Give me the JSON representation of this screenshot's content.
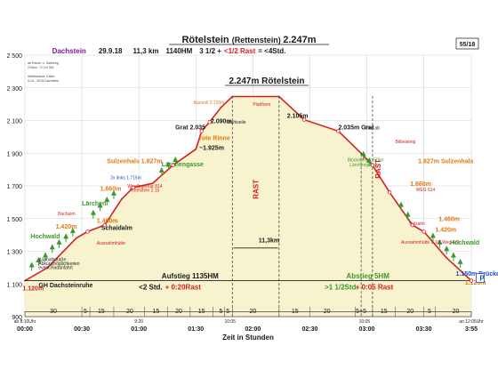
{
  "header": {
    "title_main": "Rötelstein",
    "title_paren": "(Rettenstein)",
    "title_height": "2.247m",
    "region": "Dachstein",
    "date": "29.9.18",
    "distance": "11,3 km",
    "elevation_gain": "1140HM",
    "time_part1": "3 1/2 +",
    "time_rest": "<1/2 Rast",
    "time_total": "= <4Std.",
    "tour_number": "55/18",
    "note_lines": [
      "ab Ramb. u. Salzburg",
      "210km, +2 1/4 Std.",
      "",
      "Waldstrasse 3,8km",
      "4:14 - 2015 Dachstein"
    ]
  },
  "summit_label": "2.247m Rötelstein",
  "colors": {
    "profile": "#d62020",
    "fill": "#f7f3cf",
    "green": "#3a9a2a",
    "blue": "#1a4fc7",
    "orange": "#e07a10",
    "purple": "#7a1c8c"
  },
  "chart_data": {
    "type": "area",
    "xlabel": "Zeit in Stunden",
    "ylabel": "",
    "xlim": [
      0,
      3.9167
    ],
    "ylim": [
      900,
      2500
    ],
    "y_ticks": [
      900,
      1100,
      1300,
      1500,
      1700,
      1900,
      2100,
      2300,
      2500
    ],
    "x_ticks": [
      {
        "t": 0,
        "label": "00:00"
      },
      {
        "t": 0.5,
        "label": "00:30"
      },
      {
        "t": 1.0,
        "label": "01:00"
      },
      {
        "t": 1.5,
        "label": "01:30"
      },
      {
        "t": 2.0,
        "label": "02:00"
      },
      {
        "t": 2.5,
        "label": "02:30"
      },
      {
        "t": 3.0,
        "label": "03:00"
      },
      {
        "t": 3.5,
        "label": "03:30"
      },
      {
        "t": 3.9167,
        "label": "3:55"
      }
    ],
    "x_small_labels": [
      {
        "t": 0.0,
        "label": "ab 8:10Uhr"
      },
      {
        "t": 1.0,
        "label": "9:20"
      },
      {
        "t": 1.8,
        "label": "10:05"
      },
      {
        "t": 2.98,
        "label": "10:05"
      },
      {
        "t": 3.9167,
        "label": "an 12:05Uhr"
      }
    ],
    "profile": [
      {
        "t": 0.0,
        "elev": 1120
      },
      {
        "t": 0.2,
        "elev": 1200
      },
      {
        "t": 0.45,
        "elev": 1380
      },
      {
        "t": 0.55,
        "elev": 1420
      },
      {
        "t": 0.7,
        "elev": 1460
      },
      {
        "t": 0.85,
        "elev": 1620
      },
      {
        "t": 0.95,
        "elev": 1690
      },
      {
        "t": 1.12,
        "elev": 1715
      },
      {
        "t": 1.3,
        "elev": 1827
      },
      {
        "t": 1.5,
        "elev": 1925
      },
      {
        "t": 1.55,
        "elev": 2035
      },
      {
        "t": 1.62,
        "elev": 2090
      },
      {
        "t": 1.72,
        "elev": 2180
      },
      {
        "t": 1.82,
        "elev": 2247
      },
      {
        "t": 2.23,
        "elev": 2247
      },
      {
        "t": 2.45,
        "elev": 2105
      },
      {
        "t": 2.75,
        "elev": 2035
      },
      {
        "t": 2.95,
        "elev": 1900
      },
      {
        "t": 3.05,
        "elev": 1827
      },
      {
        "t": 3.2,
        "elev": 1660
      },
      {
        "t": 3.4,
        "elev": 1460
      },
      {
        "t": 3.5,
        "elev": 1420
      },
      {
        "t": 3.7,
        "elev": 1260
      },
      {
        "t": 3.9167,
        "elev": 1120
      }
    ],
    "segment_labels": [
      {
        "t": 0.25,
        "label": "30"
      },
      {
        "t": 0.53,
        "label": "5"
      },
      {
        "t": 0.67,
        "label": "15"
      },
      {
        "t": 0.92,
        "label": "20"
      },
      {
        "t": 1.15,
        "label": "15"
      },
      {
        "t": 1.35,
        "label": "20"
      },
      {
        "t": 1.55,
        "label": "15"
      },
      {
        "t": 1.72,
        "label": "5"
      },
      {
        "t": 1.78,
        "label": "5"
      },
      {
        "t": 2.0,
        "label": "20"
      },
      {
        "t": 2.37,
        "label": "15"
      },
      {
        "t": 2.65,
        "label": "20"
      },
      {
        "t": 2.95,
        "label": "5+5"
      },
      {
        "t": 3.15,
        "label": "15"
      },
      {
        "t": 3.38,
        "label": "20"
      },
      {
        "t": 3.55,
        "label": "5"
      },
      {
        "t": 3.78,
        "label": "20"
      }
    ],
    "annotations_ascent": [
      {
        "text": "1.120m",
        "t": -0.02,
        "elev": 1060,
        "color": "red",
        "size": 7
      },
      {
        "text": "GH Dachsteinruhe",
        "t": 0.12,
        "elev": 1080,
        "color": "dark",
        "size": 7
      },
      {
        "text": "Hochwald",
        "t": 0.05,
        "elev": 1380,
        "color": "green",
        "size": 7
      },
      {
        "text": "1.420m",
        "t": 0.27,
        "elev": 1440,
        "color": "orange",
        "size": 7
      },
      {
        "text": "Bachalm",
        "t": 0.29,
        "elev": 1520,
        "color": "red",
        "size": 5
      },
      {
        "text": "Asphaltstraße",
        "t": 0.12,
        "elev": 1240,
        "color": "dark",
        "size": 5
      },
      {
        "text": "Abkürzmöglichkeiten",
        "t": 0.12,
        "elev": 1215,
        "color": "dark",
        "size": 5
      },
      {
        "text": "event.Radanfahrt",
        "t": 0.12,
        "elev": 1190,
        "color": "dark",
        "size": 5
      },
      {
        "text": "1.460m",
        "t": 0.63,
        "elev": 1475,
        "color": "orange",
        "size": 7
      },
      {
        "text": "Schaidalm",
        "t": 0.67,
        "elev": 1430,
        "color": "dark",
        "size": 7
      },
      {
        "text": "Ausnahmhütte",
        "t": 0.63,
        "elev": 1340,
        "color": "red",
        "size": 5
      },
      {
        "text": "Lärchen",
        "t": 0.5,
        "elev": 1580,
        "color": "green",
        "size": 7
      },
      {
        "text": "1.660m",
        "t": 0.66,
        "elev": 1670,
        "color": "orange",
        "size": 7
      },
      {
        "text": "2x links 1.715m",
        "t": 0.75,
        "elev": 1740,
        "color": "blue",
        "size": 5
      },
      {
        "text": "Windlegerkar 814",
        "t": 0.9,
        "elev": 1690,
        "color": "red",
        "size": 5
      },
      {
        "text": "Rötelstein 2.15",
        "t": 0.92,
        "elev": 1665,
        "color": "red",
        "size": 5
      },
      {
        "text": "Sulzenhals 1.827m",
        "t": 0.72,
        "elev": 1840,
        "color": "orange",
        "size": 7
      },
      {
        "text": "Lärchengasse",
        "t": 1.2,
        "elev": 1820,
        "color": "green",
        "size": 7
      },
      {
        "text": "Grat 2.035",
        "t": 1.32,
        "elev": 2045,
        "color": "dark",
        "size": 7
      },
      {
        "text": "rote Rinne",
        "t": 1.53,
        "elev": 1980,
        "color": "orange",
        "size": 7
      },
      {
        "text": "~1.925m",
        "t": 1.53,
        "elev": 1920,
        "color": "dark",
        "size": 7
      },
      {
        "text": "2.090m",
        "t": 1.63,
        "elev": 2085,
        "color": "dark",
        "size": 7
      },
      {
        "text": "Stahlseile",
        "t": 1.77,
        "elev": 2080,
        "color": "dark",
        "size": 5
      },
      {
        "text": "Bannoll 2.150m",
        "t": 1.48,
        "elev": 2200,
        "color": "orange",
        "size": 5
      },
      {
        "text": "Plattform",
        "t": 2.0,
        "elev": 2190,
        "color": "red",
        "size": 5
      },
      {
        "text": "2.105m",
        "t": 2.3,
        "elev": 2115,
        "color": "dark",
        "size": 7
      },
      {
        "text": "Aufstieg 1135HM",
        "t": 1.2,
        "elev": 1135,
        "color": "dark",
        "size": 8
      },
      {
        "text": "<2 Std.",
        "t": 1.0,
        "elev": 1065,
        "color": "dark",
        "size": 8
      },
      {
        "text": "+ 0:20Rast",
        "t": 1.23,
        "elev": 1065,
        "color": "red",
        "size": 8
      },
      {
        "text": "RAST",
        "t": 2.05,
        "elev": 1620,
        "color": "red",
        "size": 8
      },
      {
        "text": "11,3km",
        "t": 2.05,
        "elev": 1355,
        "color": "dark",
        "size": 7
      }
    ],
    "annotations_descent": [
      {
        "text": "2.035m Grat",
        "t": 2.75,
        "elev": 2045,
        "color": "dark",
        "size": 7
      },
      {
        "text": "links ab",
        "t": 2.98,
        "elev": 2045,
        "color": "dark",
        "size": 5
      },
      {
        "text": "Blockwerk 1.875m",
        "t": 2.83,
        "elev": 1850,
        "color": "green",
        "size": 5
      },
      {
        "text": "Lärchengasse",
        "t": 2.85,
        "elev": 1820,
        "color": "green",
        "size": 5
      },
      {
        "text": "Bilbeisteig",
        "t": 3.25,
        "elev": 1960,
        "color": "red",
        "size": 5
      },
      {
        "text": "1.827m Sulzenhals",
        "t": 3.45,
        "elev": 1840,
        "color": "orange",
        "size": 7
      },
      {
        "text": "RAST",
        "t": 3.12,
        "elev": 1745,
        "color": "red",
        "size": 8
      },
      {
        "text": "1.660m",
        "t": 3.38,
        "elev": 1700,
        "color": "orange",
        "size": 7
      },
      {
        "text": "WEG 614",
        "t": 3.43,
        "elev": 1668,
        "color": "red",
        "size": 5
      },
      {
        "text": "Sulzalm",
        "t": 3.37,
        "elev": 1460,
        "color": "red",
        "size": 5
      },
      {
        "text": "1.460m",
        "t": 3.63,
        "elev": 1485,
        "color": "orange",
        "size": 7
      },
      {
        "text": "1.420m",
        "t": 3.6,
        "elev": 1420,
        "color": "orange",
        "size": 7
      },
      {
        "text": "Ausnahmhütte 2 1/2 Weg 671",
        "t": 3.3,
        "elev": 1345,
        "color": "red",
        "size": 5
      },
      {
        "text": "Hochwald",
        "t": 3.73,
        "elev": 1340,
        "color": "green",
        "size": 7
      },
      {
        "text": "1.150m Brücke",
        "t": 3.78,
        "elev": 1150,
        "color": "blue",
        "size": 7
      },
      {
        "text": "1.120m",
        "t": 3.86,
        "elev": 1095,
        "color": "orange",
        "size": 7
      },
      {
        "text": "P",
        "t": 3.99,
        "elev": 1120,
        "color": "blue_box",
        "size": 8
      },
      {
        "text": "Abstieg 5HM",
        "t": 2.82,
        "elev": 1135,
        "color": "green",
        "size": 8
      },
      {
        "text": ">1 1/2Std.",
        "t": 2.63,
        "elev": 1065,
        "color": "green",
        "size": 8
      },
      {
        "text": "+ 0:05 Rast",
        "t": 2.9,
        "elev": 1065,
        "color": "red",
        "size": 8
      }
    ],
    "rest_lines": [
      1.82,
      3.05
    ],
    "trees_left": [
      {
        "t": 0.06,
        "elev": 1180
      },
      {
        "t": 0.12,
        "elev": 1210
      },
      {
        "t": 0.18,
        "elev": 1240
      },
      {
        "t": 0.24,
        "elev": 1290
      },
      {
        "t": 0.3,
        "elev": 1320
      },
      {
        "t": 0.36,
        "elev": 1355
      },
      {
        "t": 0.42,
        "elev": 1390
      },
      {
        "t": 0.6,
        "elev": 1500
      },
      {
        "t": 0.66,
        "elev": 1545
      },
      {
        "t": 0.72,
        "elev": 1580
      },
      {
        "t": 0.78,
        "elev": 1620
      },
      {
        "t": 1.2,
        "elev": 1760
      },
      {
        "t": 1.26,
        "elev": 1795
      },
      {
        "t": 1.32,
        "elev": 1825
      }
    ],
    "trees_right": [
      {
        "t": 2.97,
        "elev": 1860
      },
      {
        "t": 3.02,
        "elev": 1820
      },
      {
        "t": 3.3,
        "elev": 1550
      },
      {
        "t": 3.36,
        "elev": 1490
      },
      {
        "t": 3.58,
        "elev": 1360
      },
      {
        "t": 3.64,
        "elev": 1320
      },
      {
        "t": 3.7,
        "elev": 1280
      },
      {
        "t": 3.76,
        "elev": 1240
      },
      {
        "t": 3.82,
        "elev": 1200
      }
    ]
  }
}
